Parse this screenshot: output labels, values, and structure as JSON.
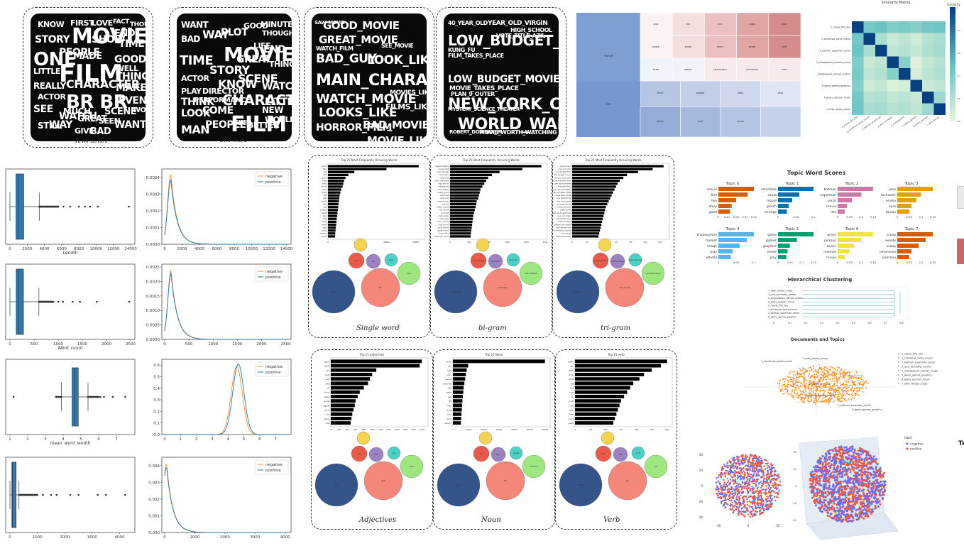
{
  "wordclouds": [
    {
      "caption": "RAW DATA",
      "words": [
        "MOVIE",
        "FILM",
        "BR BR",
        "ONE",
        "CHARACTER",
        "GOOD",
        "STORY",
        "PEOPLE",
        "KNOW",
        "REALLY",
        "SEE",
        "FIRST",
        "LOVE",
        "MADE",
        "WATCH",
        "THING",
        "TIME",
        "MAKE",
        "EVEN",
        "SCENE",
        "WANT",
        "WAY",
        "STILL",
        "GIVE",
        "BAD",
        "SEEN",
        "END",
        "SHOW",
        "WELL",
        "LITTLE",
        "ACTOR",
        "MUCH",
        "GREAT",
        "THOUGH",
        "FACT",
        "WORK"
      ]
    },
    {
      "caption": "One word",
      "words": [
        "MOVIE",
        "FILM",
        "TIME",
        "SCENE",
        "CHARACTER",
        "GOOD",
        "STORY",
        "PLOT",
        "WAY",
        "WATCH",
        "THINK",
        "PEOPLE",
        "MAN",
        "LOOK",
        "COME",
        "FIND",
        "KNOW",
        "GREAT",
        "LITTLE",
        "END",
        "LIFE",
        "THING",
        "BETTER",
        "WANT",
        "BAD",
        "ACTOR",
        "DIRECTOR",
        "PLAY",
        "NEW",
        "WORLD",
        "PERFORMANCE",
        "MINUTE",
        "THOUGHT"
      ]
    },
    {
      "caption": "",
      "words": [
        "GOOD_MOVIE",
        "GREAT_MOVIE",
        "BAD_GUY",
        "LOOK_LIKE",
        "MAIN_CHARACTER",
        "WATCH_MOVIE",
        "LOOKS_LIKE",
        "HORROR_FILM",
        "BAD_MOVIE",
        "MOVIE_LIKE",
        "SAW_MOVIE",
        "FILMS_LIKE",
        "MOVIES_LIKE",
        "WATCH_FILM",
        "SEE_MOVIE"
      ]
    },
    {
      "caption": "",
      "words": [
        "LOW_BUDGET_FILM",
        "NEW_YORK_CITY",
        "WORLD_WAR_II",
        "40_YEAR_OLD",
        "YEAR_OLD_VIRGIN",
        "FILM_TAKES_PLACE",
        "LOW_BUDGET_MOVIE",
        "MOVIE_TAKES_PLACE",
        "KUNG_FU",
        "MYSTERY_SCIENCE_THEATER",
        "ROBERT_DOWNEY_JR",
        "MOVIE_WORTH_WATCHING",
        "VOTE_TITLE_AZIL",
        "PLAN_9_OUTER",
        "HIGH_SCHOOL"
      ]
    }
  ],
  "treemap": {
    "cells_large": [
      "movie",
      "film"
    ],
    "cells_small": [
      "way",
      "like",
      "one",
      "make",
      "good",
      "watch",
      "know",
      "even",
      "great",
      "see",
      "time",
      "would",
      "characters",
      "character",
      "man",
      "think",
      "people",
      "bad",
      "also",
      "story",
      "well",
      "scene"
    ]
  },
  "heatmap": {
    "title": "Similarity Matrix",
    "colorbar_label": "Similarity",
    "rows": [
      "2_movie_film_like",
      "1_christmas_santa_movie",
      "3_batman_superman_serial",
      "5_shakespeare_hamlet_emma",
      "4_shakespeare_hamlet_english",
      "6_game_games_graphics",
      "6_grace_jackson_music",
      "7_elliot_woody_scoop"
    ],
    "cols": [
      "0_movie_film_like",
      "1_christmas_santa_movie",
      "2_batman_superman",
      "3_jane_rochester",
      "4_shakespeare",
      "5_game_games",
      "6_grace_jackson",
      "7_allen_woody"
    ],
    "values": [
      [
        1.0,
        0.72,
        0.74,
        0.7,
        0.71,
        0.69,
        0.72,
        0.73
      ],
      [
        0.72,
        1.0,
        0.62,
        0.56,
        0.58,
        0.55,
        0.6,
        0.62
      ],
      [
        0.74,
        0.62,
        1.0,
        0.58,
        0.6,
        0.57,
        0.61,
        0.63
      ],
      [
        0.7,
        0.56,
        0.58,
        1.0,
        0.68,
        0.52,
        0.57,
        0.6
      ],
      [
        0.71,
        0.58,
        0.6,
        0.68,
        1.0,
        0.54,
        0.59,
        0.61
      ],
      [
        0.69,
        0.55,
        0.57,
        0.52,
        0.54,
        1.0,
        0.56,
        0.58
      ],
      [
        0.72,
        0.6,
        0.61,
        0.57,
        0.59,
        0.56,
        1.0,
        0.64
      ],
      [
        0.73,
        0.62,
        0.63,
        0.6,
        0.61,
        0.58,
        0.64,
        1.0
      ]
    ]
  },
  "distribution_charts": [
    {
      "xlabel": "Length",
      "box_xticks": [
        "0",
        "2000",
        "4000",
        "6000",
        "8000",
        "10000",
        "12000",
        "14000"
      ],
      "box_xrange": [
        0,
        14000
      ],
      "box": {
        "q1": 700,
        "median": 970,
        "q3": 1600,
        "whisker_hi": 3400,
        "outliers": [
          3500,
          4200,
          5000,
          5600,
          6200,
          7000,
          8000,
          8700,
          9300,
          10200,
          13800
        ]
      },
      "kde_xticks": [
        "0",
        "2000",
        "4000",
        "6000",
        "8000",
        "10000",
        "12000",
        "14000"
      ],
      "kde_yticks": [
        "0.0000",
        "0.0001",
        "0.0002",
        "0.0003",
        "0.0004"
      ],
      "kde_ymax": 0.00045,
      "kde_peak_x": 700,
      "kde_peak_neg": 0.00042,
      "kde_peak_pos": 0.00039
    },
    {
      "xlabel": "Word_count",
      "box_xticks": [
        "0",
        "500",
        "1000",
        "1500",
        "2000",
        "2500"
      ],
      "box_xrange": [
        0,
        2500
      ],
      "box": {
        "q1": 130,
        "median": 175,
        "q3": 280,
        "whisker_hi": 600,
        "outliers": [
          650,
          700,
          800,
          900,
          1000,
          1100,
          1300,
          1450,
          1800,
          2470
        ]
      },
      "kde_xticks": [
        "0",
        "500",
        "1000",
        "1500",
        "2000",
        "2500"
      ],
      "kde_yticks": [
        "0.0000",
        "0.0005",
        "0.0010",
        "0.0015",
        "0.0020",
        "0.0025"
      ],
      "kde_ymax": 0.0026,
      "kde_peak_x": 130,
      "kde_peak_neg": 0.0024,
      "kde_peak_pos": 0.0023
    },
    {
      "xlabel": "mean_word_length",
      "box_xticks": [
        "1",
        "2",
        "3",
        "4",
        "5",
        "6",
        "7"
      ],
      "box_xrange": [
        1,
        7.8
      ],
      "box": {
        "q1": 4.5,
        "median": 4.65,
        "q3": 4.85,
        "whisker_lo": 3.9,
        "whisker_hi": 5.4,
        "outliers": [
          1.2,
          3.6,
          5.5,
          5.7,
          5.9,
          6.1,
          6.3,
          6.8,
          7.5
        ]
      },
      "kde_xticks": [
        "0",
        "1",
        "2",
        "3",
        "4",
        "5",
        "6",
        "7"
      ],
      "kde_yticks": [
        "0.0",
        "0.1",
        "0.2",
        "0.3",
        "0.4",
        "0.5",
        "0.6"
      ],
      "kde_ymax": 0.65,
      "kde_peak_x": 4.6,
      "kde_peak_neg": 0.59,
      "kde_peak_pos": 0.61
    },
    {
      "xlabel": "",
      "box_xticks": [
        "0",
        "1000",
        "2000",
        "3000",
        "4000"
      ],
      "box_xrange": [
        0,
        4400
      ],
      "box": {
        "q1": 70,
        "median": 95,
        "q3": 160,
        "whisker_hi": 330,
        "outliers": [
          400,
          600,
          800,
          1000,
          1200,
          1500,
          1700,
          2200,
          2500,
          3200,
          3500,
          4200
        ]
      },
      "kde_xticks": [
        "0",
        "1000",
        "2000",
        "3000",
        "4000"
      ],
      "kde_yticks": [
        "0.000",
        "0.001",
        "0.002",
        "0.003",
        "0.004"
      ],
      "kde_ymax": 0.0045,
      "kde_peak_x": 60,
      "kde_peak_neg": 0.0042,
      "kde_peak_pos": 0.004
    }
  ],
  "legend_labels": {
    "negative": "negative",
    "positive": "positive"
  },
  "series_colors": {
    "negative": "#f28e2b",
    "positive": "#1f77b4"
  },
  "bar_panels": [
    {
      "title": "Top 25 Most Frequently Occuring Words",
      "caption": "Single word",
      "values": [
        62000,
        40000,
        18000,
        14000,
        12000,
        11000,
        10500,
        10000,
        9000,
        8500,
        8000,
        7800,
        7500,
        7200,
        7000,
        6800,
        6500,
        6300,
        6000,
        5800,
        5600,
        5400,
        5200,
        5000,
        4900
      ],
      "xticks": [
        "0",
        "20000",
        "40000",
        "60000"
      ],
      "xmax": 65000,
      "labels": [
        "movie",
        "film",
        "one",
        "like",
        "good",
        "time",
        "even",
        "would",
        "story",
        "really",
        "see",
        "well",
        "much",
        "bad",
        "get",
        "people",
        "great",
        "also",
        "first",
        "made",
        "make",
        "way",
        "could",
        "movies",
        "think"
      ]
    },
    {
      "title": "Top 25 Most Frequently Occuring Words",
      "caption": "bi-gram",
      "values": [
        2400,
        1900,
        1300,
        1100,
        1000,
        950,
        900,
        850,
        800,
        780,
        760,
        740,
        700,
        690,
        670,
        650,
        630,
        610,
        600,
        590,
        580,
        570,
        560,
        550,
        540
      ],
      "xticks": [
        "0",
        "500",
        "1000",
        "1500",
        "2000",
        "2500"
      ],
      "xmax": 2500,
      "labels": [
        "special effects",
        "low budget",
        "even though",
        "ever seen",
        "looks like",
        "main character",
        "high school",
        "waste time",
        "much better",
        "pretty good",
        "first time",
        "new york",
        "movie ever",
        "real life",
        "watch movie",
        "see movie",
        "one best",
        "ever made",
        "years ago",
        "horror movie",
        "bad movie",
        "good movie",
        "great movie",
        "horror film",
        "watching movie"
      ]
    },
    {
      "title": "Top 25 Most Frequently Occuring Words",
      "caption": "tri-gram",
      "values": [
        125,
        110,
        90,
        75,
        70,
        65,
        62,
        60,
        58,
        56,
        54,
        52,
        50,
        48,
        46,
        45,
        44,
        43,
        42,
        41,
        40,
        39,
        38,
        37,
        36
      ],
      "xticks": [
        "0",
        "20",
        "40",
        "60",
        "80",
        "100",
        "120"
      ],
      "xmax": 130,
      "labels": [
        "world war ii",
        "new york city",
        "low budget film",
        "low budget movie",
        "worst movie ever",
        "movie ever seen",
        "one worst movies",
        "one best films",
        "mystery science theater",
        "science theater 3000",
        "movie ever made",
        "one worst films",
        "film ever made",
        "dont get wrong",
        "one best movies",
        "takes place",
        "well worth watching",
        "year old virgin",
        "worst film ever",
        "first time saw",
        "please dont waste",
        "dont waste time",
        "highly recommend movie",
        "see movie",
        "best movie ever"
      ]
    },
    {
      "title": "Top 15 adjectives",
      "caption": "Adjectives",
      "values": [
        2200,
        2150,
        1100,
        1000,
        950,
        900,
        800,
        700,
        650,
        600,
        580,
        550,
        520,
        500,
        480
      ],
      "xticks": [
        "0",
        "200",
        "400",
        "600",
        "800",
        "1000",
        "1200",
        "1400",
        "1600",
        "1800",
        "2000",
        "2200"
      ],
      "xmax": 2300,
      "labels": [
        "good",
        "great",
        "bad",
        "best",
        "real",
        "little",
        "old",
        "funny",
        "better",
        "young",
        "original",
        "worst",
        "big",
        "whole",
        "new"
      ]
    },
    {
      "title": "Top 15 Noun",
      "caption": "Noun",
      "values": [
        60000,
        10000,
        9000,
        8500,
        8000,
        7500,
        7000,
        6800,
        6500,
        6200,
        6000,
        5800,
        5600,
        5400,
        5200
      ],
      "xticks": [
        "0",
        "10000",
        "20000",
        "30000",
        "40000",
        "50000",
        "60000"
      ],
      "xmax": 62000,
      "labels": [
        "movie",
        "film",
        "time",
        "story",
        "people",
        "character",
        "way",
        "scene",
        "plot",
        "life",
        "man",
        "thing",
        "actor",
        "world",
        "director"
      ]
    },
    {
      "title": "Top 15 verb",
      "caption": "Verb",
      "values": [
        600,
        560,
        500,
        450,
        420,
        380,
        360,
        340,
        320,
        300,
        290,
        280,
        270,
        260,
        250
      ],
      "xticks": [
        "0",
        "100",
        "200",
        "300",
        "400",
        "500",
        "600"
      ],
      "xmax": 620,
      "labels": [
        "watch",
        "see",
        "make",
        "think",
        "know",
        "get",
        "find",
        "look",
        "go",
        "come",
        "say",
        "give",
        "take",
        "want",
        "seem"
      ]
    }
  ],
  "bubble_words": [
    [
      "movie",
      "film",
      "one",
      "like",
      "good",
      "time"
    ],
    [
      "special effects",
      "low budget",
      "even though",
      "ever seen",
      "looks like",
      "main character"
    ],
    [
      "world war ii",
      "new york city",
      "low budget film",
      "worst movie ever",
      "movie ever seen",
      "one worst movies"
    ],
    [
      "good",
      "great",
      "bad",
      "best",
      "real",
      "little"
    ],
    [
      "movie",
      "film",
      "time",
      "story",
      "people",
      "character"
    ],
    [
      "watch",
      "see",
      "make",
      "think",
      "know",
      "get"
    ]
  ],
  "topic_scores": {
    "title": "Topic Word Scores",
    "topics": [
      {
        "name": "Topic 0",
        "words": [
          "movie",
          "film",
          "like",
          "story",
          "good"
        ],
        "scores": [
          0.04,
          0.033,
          0.02,
          0.015,
          0.013
        ],
        "xticks": [
          "0",
          "0.01",
          "0.02",
          "0.03",
          "0.04"
        ]
      },
      {
        "name": "Topic 1",
        "words": [
          "christmas",
          "santa",
          "movie",
          "grinch",
          "scrooge"
        ],
        "scores": [
          0.1,
          0.06,
          0.04,
          0.03,
          0.025
        ],
        "xticks": [
          "0",
          "0.05",
          "0.1"
        ]
      },
      {
        "name": "Topic 2",
        "words": [
          "batman",
          "superman",
          "serial",
          "movie",
          "like"
        ],
        "scores": [
          0.15,
          0.1,
          0.06,
          0.04,
          0.03
        ],
        "xticks": [
          "0",
          "0.05",
          "0.1",
          "0.15"
        ]
      },
      {
        "name": "Topic 3",
        "words": [
          "jane",
          "rochester",
          "emma",
          "eyre",
          "tarzan"
        ],
        "scores": [
          0.15,
          0.1,
          0.08,
          0.06,
          0.05
        ],
        "xticks": [
          "0",
          "0.05",
          "0.1",
          "0.15"
        ]
      },
      {
        "name": "Topic 4",
        "words": [
          "shakespeare",
          "hamlet",
          "anagh",
          "play",
          "othello"
        ],
        "scores": [
          0.1,
          0.08,
          0.06,
          0.04,
          0.035
        ],
        "xticks": [
          "0",
          "0.05",
          "0.1"
        ]
      },
      {
        "name": "Topic 5",
        "words": [
          "game",
          "games",
          "graphics",
          "levels",
          "play"
        ],
        "scores": [
          0.15,
          0.08,
          0.05,
          0.04,
          0.035
        ],
        "xticks": [
          "0",
          "0.05",
          "0.1",
          "0.15"
        ]
      },
      {
        "name": "Topic 6",
        "words": [
          "grace",
          "jackson",
          "music",
          "michael",
          "movie"
        ],
        "scores": [
          0.15,
          0.1,
          0.07,
          0.05,
          0.03
        ],
        "xticks": [
          "0",
          "0.05",
          "0.1",
          "0.15"
        ]
      },
      {
        "name": "Topic 7",
        "words": [
          "scoop",
          "woody",
          "scoop",
          "johansson",
          "jackman"
        ],
        "scores": [
          0.15,
          0.12,
          0.09,
          0.06,
          0.05
        ],
        "xticks": [
          "0",
          "0.05",
          "0.1",
          "0.15"
        ]
      }
    ],
    "colors": [
      "#d55e00",
      "#0072b2",
      "#cc79a7",
      "#e69f00",
      "#56b4e9",
      "#009e73",
      "#f0e442",
      "#d55e00"
    ]
  },
  "hierarchical": {
    "title": "Hierarchical Clustering",
    "leaves": [
      "7_elliot_woody_scoop",
      "3_jane_rochester_emma",
      "4_shakespeare_hamlet_english",
      "0_grace_jackson_music",
      "0_movie_film_like",
      "1_christmas_santa_movie",
      "2_batman_superman_serial",
      "5_game_games_graphics"
    ],
    "xticks": [
      "0",
      "0.1",
      "0.2",
      "0.3",
      "0.4",
      "0.5",
      "0.6",
      "0.7",
      "0.8"
    ]
  },
  "doc_topics": {
    "title": "Documents and Topics",
    "legend": [
      "0_movie_film_like",
      "1_christmas_santa_movie",
      "2_batman_superman_serial",
      "3_jane_rochester_emma",
      "4_shakespeare_hamlet_anagh",
      "5_game_games_graphics",
      "6_grace_jackson_music",
      "7_allen_woody_scoop"
    ],
    "labels": [
      "1_christmas_santa_movie",
      "7_allen_woody_scoop",
      "0_movie_film_like",
      "3_jane_rochester_emma",
      "2_batman_superman_serial",
      "5_game_games_graphics"
    ]
  },
  "scatter3d": {
    "legend_title": "label",
    "legend": [
      "negative",
      "positive"
    ],
    "colors": {
      "negative": "#636efa",
      "positive": "#ef553b"
    }
  },
  "right_partial_title": "Te"
}
